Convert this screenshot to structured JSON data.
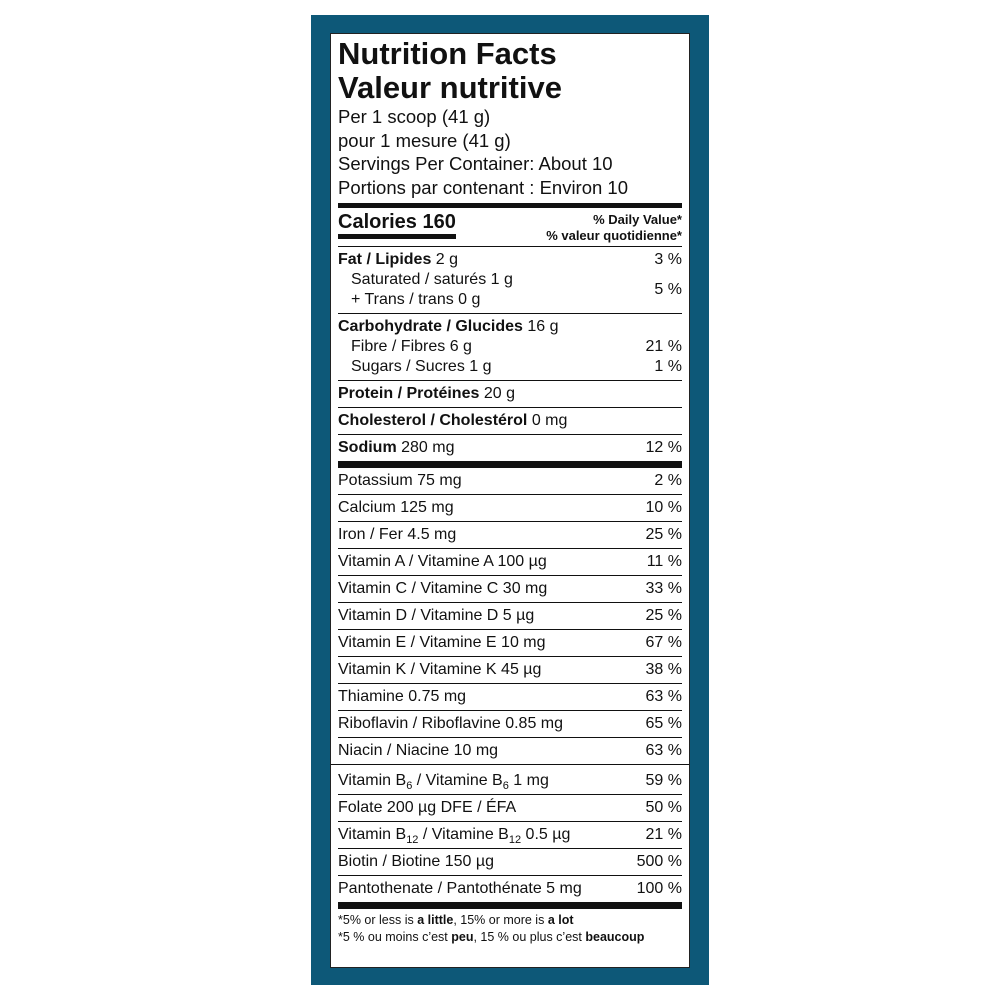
{
  "header": {
    "title": "Nutrition Facts",
    "title_fr": "Valeur nutritive",
    "serving": [
      "Per 1 scoop (41 g)",
      "pour 1 mesure (41 g)",
      "Servings Per Container: About 10",
      "Portions par contenant : Environ 10"
    ]
  },
  "calories": {
    "label": "Calories 160",
    "dv": [
      "% Daily Value*",
      "% valeur quotidienne*"
    ]
  },
  "rows": [
    {
      "lines": [
        {
          "parts": [
            {
              "text": "Fat / Lipides",
              "style": "bold"
            },
            {
              "text": " 2 g"
            }
          ]
        }
      ],
      "dv": "3 %",
      "rule": "none"
    },
    {
      "lines": [
        {
          "indent": true,
          "parts": [
            {
              "text": "Saturated / saturés 1 g"
            }
          ]
        },
        {
          "indent": true,
          "parts": [
            {
              "text": "+ Trans / trans 0 g"
            }
          ]
        }
      ],
      "dv": "5 %",
      "rule": "thin"
    },
    {
      "lines": [
        {
          "parts": [
            {
              "text": "Carbohydrate / Glucides",
              "style": "bold"
            },
            {
              "text": " 16 g"
            }
          ]
        }
      ],
      "rule": "none"
    },
    {
      "lines": [
        {
          "indent": true,
          "parts": [
            {
              "text": "Fibre / Fibres 6 g"
            }
          ]
        }
      ],
      "dv": "21 %",
      "rule": "none"
    },
    {
      "lines": [
        {
          "indent": true,
          "parts": [
            {
              "text": "Sugars / Sucres 1 g"
            }
          ]
        }
      ],
      "dv": "1 %",
      "rule": "thin"
    },
    {
      "lines": [
        {
          "parts": [
            {
              "text": "Protein / Protéines",
              "style": "bold"
            },
            {
              "text": " 20 g"
            }
          ]
        }
      ],
      "rule": "thin"
    },
    {
      "lines": [
        {
          "parts": [
            {
              "text": "Cholesterol / Cholestérol",
              "style": "bold"
            },
            {
              "text": " 0 mg"
            }
          ]
        }
      ],
      "rule": "thin"
    },
    {
      "lines": [
        {
          "parts": [
            {
              "text": "Sodium",
              "style": "bold"
            },
            {
              "text": " 280 mg"
            }
          ]
        }
      ],
      "dv": "12 %",
      "rule": "thick"
    },
    {
      "lines": [
        {
          "parts": [
            {
              "text": "Potassium 75 mg"
            }
          ]
        }
      ],
      "dv": "2 %",
      "rule": "thin"
    },
    {
      "lines": [
        {
          "parts": [
            {
              "text": "Calcium 125 mg"
            }
          ]
        }
      ],
      "dv": "10 %",
      "rule": "thin"
    },
    {
      "lines": [
        {
          "parts": [
            {
              "text": "Iron / Fer 4.5 mg"
            }
          ]
        }
      ],
      "dv": "25 %",
      "rule": "thin"
    },
    {
      "lines": [
        {
          "parts": [
            {
              "text": "Vitamin A / Vitamine A 100 µg"
            }
          ]
        }
      ],
      "dv": "11 %",
      "rule": "thin"
    },
    {
      "lines": [
        {
          "parts": [
            {
              "text": "Vitamin C / Vitamine C 30 mg"
            }
          ]
        }
      ],
      "dv": "33 %",
      "rule": "thin"
    },
    {
      "lines": [
        {
          "parts": [
            {
              "text": "Vitamin D / Vitamine D 5 µg"
            }
          ]
        }
      ],
      "dv": "25 %",
      "rule": "thin"
    },
    {
      "lines": [
        {
          "parts": [
            {
              "text": "Vitamin E / Vitamine E 10 mg"
            }
          ]
        }
      ],
      "dv": "67 %",
      "rule": "thin"
    },
    {
      "lines": [
        {
          "parts": [
            {
              "text": "Vitamin K / Vitamine K 45 µg"
            }
          ]
        }
      ],
      "dv": "38 %",
      "rule": "thin"
    },
    {
      "lines": [
        {
          "parts": [
            {
              "text": "Thiamine 0.75 mg"
            }
          ]
        }
      ],
      "dv": "63 %",
      "rule": "thin"
    },
    {
      "lines": [
        {
          "parts": [
            {
              "text": "Riboflavin / Riboflavine 0.85 mg"
            }
          ]
        }
      ],
      "dv": "65 %",
      "rule": "thin"
    },
    {
      "lines": [
        {
          "parts": [
            {
              "text": "Niacin / Niacine 10 mg"
            }
          ]
        }
      ],
      "dv": "63 %",
      "rule": "wide"
    },
    {
      "lines": [
        {
          "parts": [
            {
              "text": "Vitamin B"
            },
            {
              "text": "6",
              "style": "sub"
            },
            {
              "text": " / Vitamine B"
            },
            {
              "text": "6",
              "style": "sub"
            },
            {
              "text": " 1 mg"
            }
          ]
        }
      ],
      "dv": "59 %",
      "rule": "thin"
    },
    {
      "lines": [
        {
          "parts": [
            {
              "text": "Folate 200 µg DFE / ÉFA"
            }
          ]
        }
      ],
      "dv": "50 %",
      "rule": "thin"
    },
    {
      "lines": [
        {
          "parts": [
            {
              "text": "Vitamin B"
            },
            {
              "text": "12",
              "style": "sub"
            },
            {
              "text": " / Vitamine B"
            },
            {
              "text": "12",
              "style": "sub"
            },
            {
              "text": " 0.5 µg"
            }
          ]
        }
      ],
      "dv": "21 %",
      "rule": "thin"
    },
    {
      "lines": [
        {
          "parts": [
            {
              "text": "Biotin / Biotine 150 µg"
            }
          ]
        }
      ],
      "dv": "500 %",
      "rule": "thin"
    },
    {
      "lines": [
        {
          "parts": [
            {
              "text": "Pantothenate / Pantothénate 5 mg"
            }
          ]
        }
      ],
      "dv": "100 %",
      "rule": "thick"
    }
  ],
  "footnote": [
    [
      {
        "text": "*5% or less is "
      },
      {
        "text": "a little",
        "style": "bold"
      },
      {
        "text": ", 15% or more is "
      },
      {
        "text": "a lot",
        "style": "bold"
      }
    ],
    [
      {
        "text": "*5 % ou moins c’est "
      },
      {
        "text": "peu",
        "style": "bold"
      },
      {
        "text": ", 15 % ou plus c’est "
      },
      {
        "text": "beaucoup",
        "style": "bold"
      }
    ]
  ]
}
